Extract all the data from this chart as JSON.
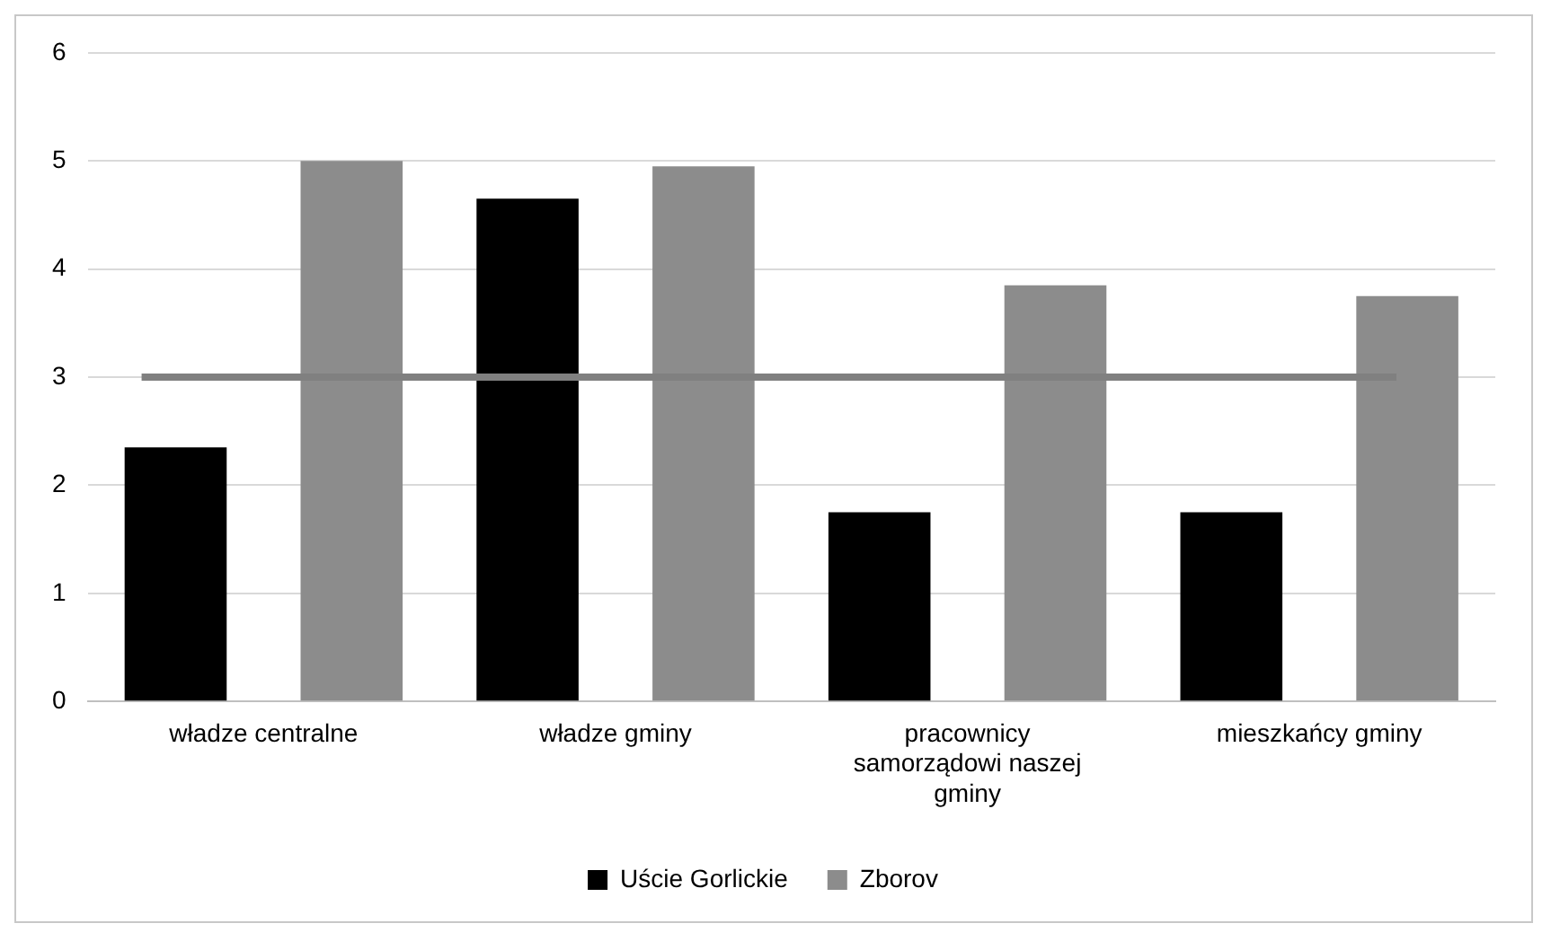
{
  "chart_data": {
    "type": "bar",
    "categories": [
      "władze centralne",
      "władze gminy",
      "pracownicy samorządowi naszej gminy",
      "mieszkańcy gminy"
    ],
    "series": [
      {
        "name": "Uście Gorlickie",
        "color": "#000000",
        "values": [
          2.35,
          4.65,
          1.75,
          1.75
        ]
      },
      {
        "name": "Zborov",
        "color": "#8c8c8c",
        "values": [
          5.0,
          4.95,
          3.85,
          3.75
        ]
      }
    ],
    "ylim": [
      0,
      6
    ],
    "yticks": [
      0,
      1,
      2,
      3,
      4,
      5,
      6
    ],
    "grid": "y",
    "legend": "bottom",
    "ref_lines": [
      {
        "axis": "y",
        "value": 3,
        "color": "#808080"
      }
    ]
  }
}
